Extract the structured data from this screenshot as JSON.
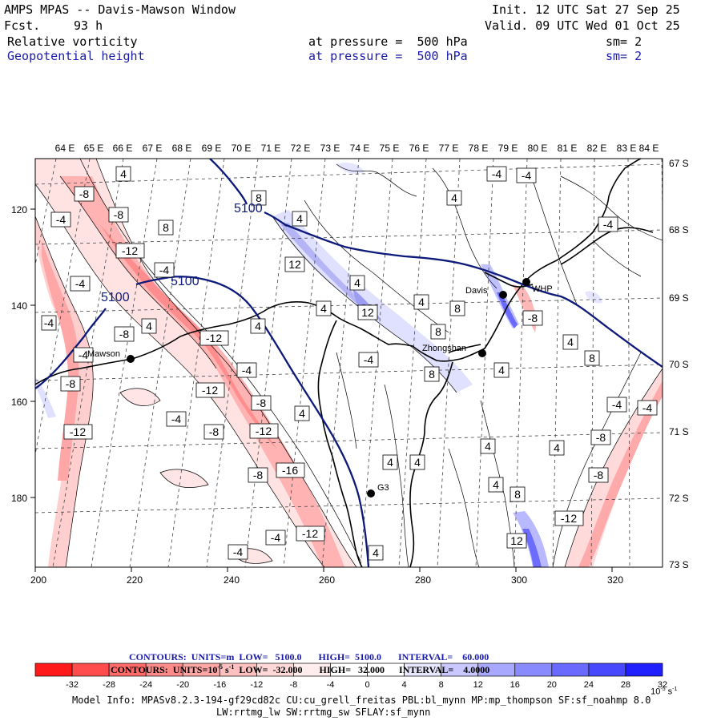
{
  "header": {
    "title": "AMPS MPAS -- Davis-Mawson Window",
    "fcst_label": "Fcst.",
    "fcst_value": "93 h",
    "init": "Init. 12 UTC Sat 27 Sep 25",
    "valid": "Valid. 09 UTC Wed 01 Oct 25",
    "field1": {
      "name": "Relative vorticity",
      "pressure": "at pressure =  500 hPa",
      "sm": "sm= 2"
    },
    "field2": {
      "name": "Geopotential height",
      "pressure": "at pressure =  500 hPa",
      "sm": "sm= 2"
    }
  },
  "map": {
    "top_lon_labels": [
      "64 E",
      "65 E",
      "66 E",
      "67 E",
      "68 E",
      "69 E",
      "70 E",
      "71 E",
      "72 E",
      "73 E",
      "74 E",
      "75 E",
      "76 E",
      "77 E",
      "78 E",
      "79 E",
      "80 E",
      "81 E",
      "82 E",
      "83 E",
      "84 E"
    ],
    "right_lat_labels": [
      "67 S",
      "68 S",
      "69 S",
      "70 S",
      "71 S",
      "72 S",
      "73 S"
    ],
    "x_ticks": [
      "200",
      "220",
      "240",
      "260",
      "280",
      "300",
      "320"
    ],
    "y_ticks": [
      "120",
      "140",
      "160",
      "180"
    ],
    "stations": [
      {
        "name": "Mawson"
      },
      {
        "name": "Davis"
      },
      {
        "name": "WHP"
      },
      {
        "name": "Zhongshan"
      },
      {
        "name": "G3"
      }
    ],
    "height_contour_labels": [
      "5100",
      "5100",
      "5100"
    ],
    "vort_labels": [
      "4",
      "-8",
      "-4",
      "-8",
      "8",
      "4",
      "12",
      "-12",
      "-4",
      "-4",
      "12",
      "4",
      "-8",
      "4",
      "-4",
      "-12",
      "8",
      "8",
      "-4",
      "4",
      "-4",
      "-12",
      "-8",
      "-4",
      "-8",
      "-12",
      "-16",
      "-8",
      "4",
      "4",
      "4",
      "4",
      "-8",
      "4",
      "8",
      "4",
      "8",
      "-4",
      "-4",
      "-4",
      "-4",
      "4",
      "8",
      "-4",
      "-12",
      "-4",
      "-8",
      "-8",
      "4",
      "4",
      "-4",
      "-8",
      "-4",
      "4",
      "4",
      "8",
      "12",
      "-12",
      "4",
      "-12",
      "-4"
    ],
    "colors": {
      "geopotential_contour": "#0d1a7a",
      "coast": "#000000",
      "grid": "#555555"
    }
  },
  "legend": {
    "line1": {
      "contours": "CONTOURS:",
      "units": "UNITS=m",
      "low": "LOW=   5100.0",
      "high": "HIGH=  5100.0",
      "interval": "INTERVAL=    60.000"
    },
    "line2": {
      "contours": "CONTOURS:",
      "units": "UNITS=10",
      "units_exp": "-5",
      "units_s": "s",
      "units_s_exp": "-1",
      "low": "LOW=  -32.000",
      "high": "HIGH=   32.000",
      "interval": "INTERVAL=    4.0000"
    },
    "colorbar_labels": [
      "-32",
      "-28",
      "-24",
      "-20",
      "-16",
      "-12",
      "-8",
      "-4",
      "0",
      "4",
      "8",
      "12",
      "16",
      "20",
      "24",
      "28",
      "32"
    ],
    "colorbar_unit": "10",
    "colorbar_unit_exp": "-5",
    "colorbar_unit_s": "s",
    "colorbar_unit_s_exp": "-1",
    "colorbar_colors": [
      "#ff1a1a",
      "#ff4d4d",
      "#ff6b6b",
      "#ff8a8a",
      "#ffa6a6",
      "#ffc0c0",
      "#ffd8d8",
      "#ffeded",
      "#ffffff",
      "#ffffff",
      "#e8e8ff",
      "#c8c8ff",
      "#a8a8ff",
      "#8a8aff",
      "#6a6aff",
      "#4848ff",
      "#2020ff"
    ]
  },
  "footer": {
    "line1": "Model Info: MPASv8.2.3-194-gf29cd82c CU:cu_grell_freitas PBL:bl_mynn MP:mp_thompson SF:sf_noahmp 8.0",
    "line2": "LW:rrtmg_lw SW:rrtmg_sw SFLAY:sf_mynn"
  }
}
